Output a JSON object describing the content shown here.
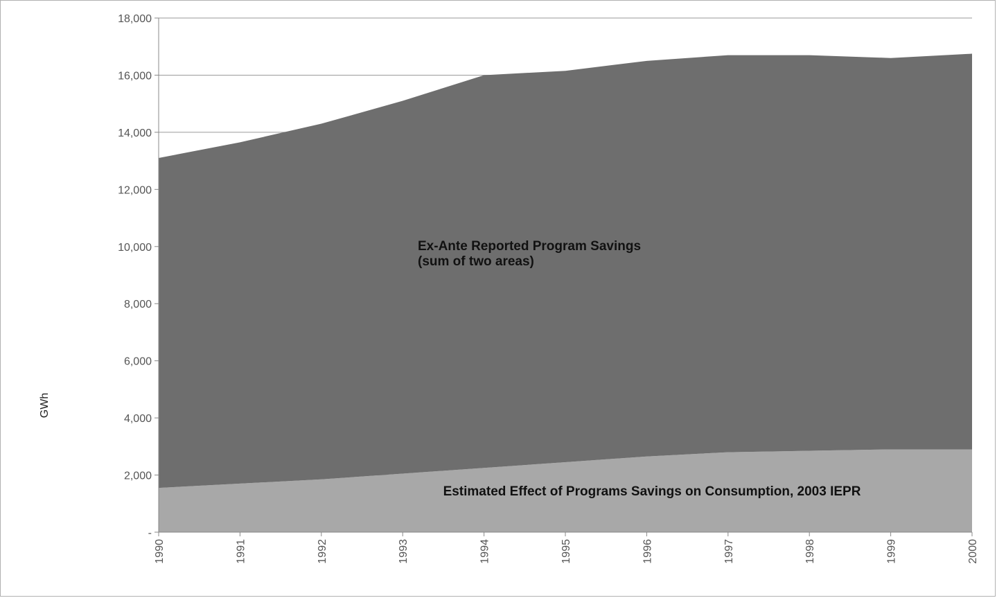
{
  "chart_data": {
    "type": "area",
    "title": "",
    "xlabel": "",
    "ylabel": "GWh",
    "x": [
      "1990",
      "1991",
      "1992",
      "1993",
      "1994",
      "1995",
      "1996",
      "1997",
      "1998",
      "1999",
      "2000"
    ],
    "ylim": [
      0,
      18000
    ],
    "y_ticks": [
      0,
      2000,
      4000,
      6000,
      8000,
      10000,
      12000,
      14000,
      16000,
      18000
    ],
    "y_tick_labels": [
      "-",
      "2,000",
      "4,000",
      "6,000",
      "8,000",
      "10,000",
      "12,000",
      "14,000",
      "16,000",
      "18,000"
    ],
    "grid": "horizontal",
    "series": [
      {
        "values": [
          1550,
          1700,
          1850,
          2050,
          2250,
          2450,
          2650,
          2800,
          2850,
          2900,
          2900
        ],
        "color": "#a8a8a8"
      },
      {
        "values": [
          11550,
          11950,
          12450,
          13050,
          13750,
          13700,
          13850,
          13900,
          13850,
          13700,
          13850
        ],
        "color": "#6e6e6e"
      }
    ],
    "annotations": [
      {
        "lines": [
          "Ex-Ante Reported Program Savings",
          "(sum of two areas)"
        ]
      },
      {
        "lines": [
          "Estimated Effect of Programs Savings  on Consumption, 2003 IEPR"
        ]
      }
    ]
  }
}
